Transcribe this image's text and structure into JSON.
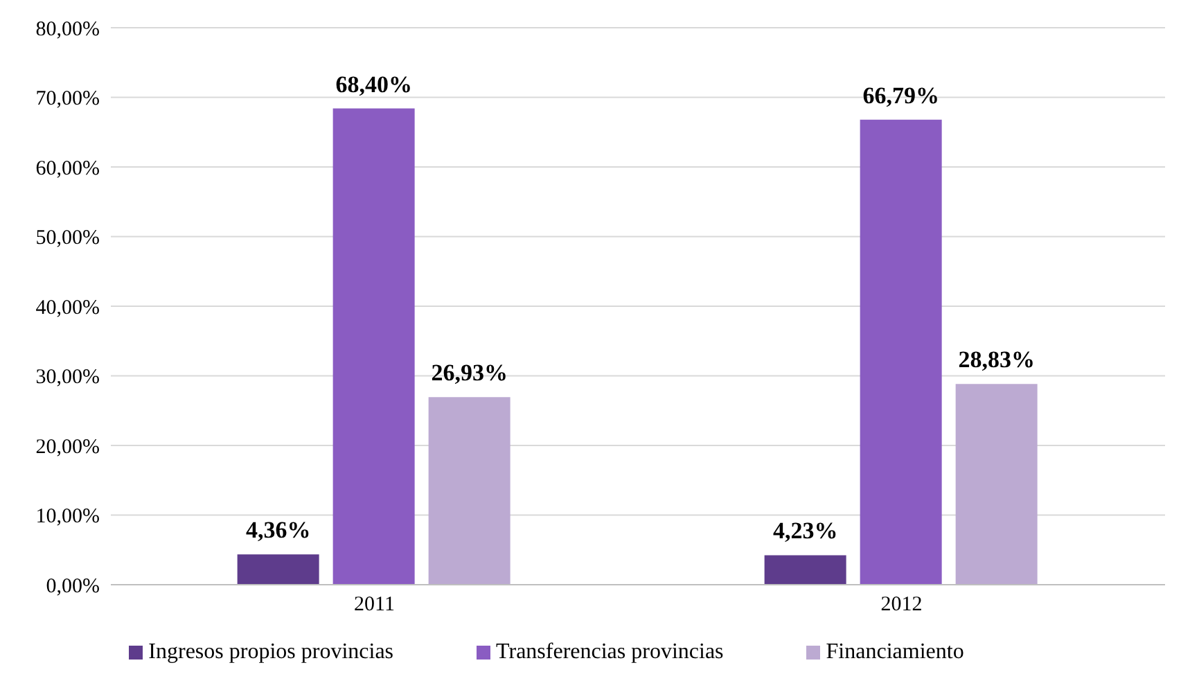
{
  "chart_data": {
    "type": "bar",
    "categories": [
      "2011",
      "2012"
    ],
    "series": [
      {
        "name": "Ingresos propios provincias",
        "color": "#5e3c8c",
        "values": [
          4.36,
          4.23
        ],
        "value_labels": [
          "4,36%",
          "4,23%"
        ]
      },
      {
        "name": "Transferencias provincias",
        "color": "#8a5cc2",
        "values": [
          68.4,
          66.79
        ],
        "value_labels": [
          "68,40%",
          "66,79%"
        ]
      },
      {
        "name": "Financiamiento",
        "color": "#bcaad2",
        "values": [
          26.93,
          28.83
        ],
        "value_labels": [
          "26,93%",
          "28,83%"
        ]
      }
    ],
    "ylim": [
      0,
      80
    ],
    "yticks": [
      {
        "value": 0,
        "label": "0,00%"
      },
      {
        "value": 10,
        "label": "10,00%"
      },
      {
        "value": 20,
        "label": "20,00%"
      },
      {
        "value": 30,
        "label": "30,00%"
      },
      {
        "value": 40,
        "label": "40,00%"
      },
      {
        "value": 50,
        "label": "50,00%"
      },
      {
        "value": 60,
        "label": "60,00%"
      },
      {
        "value": 70,
        "label": "70,00%"
      },
      {
        "value": 80,
        "label": "80,00%"
      }
    ],
    "grid": "y",
    "legend": "bottom"
  }
}
